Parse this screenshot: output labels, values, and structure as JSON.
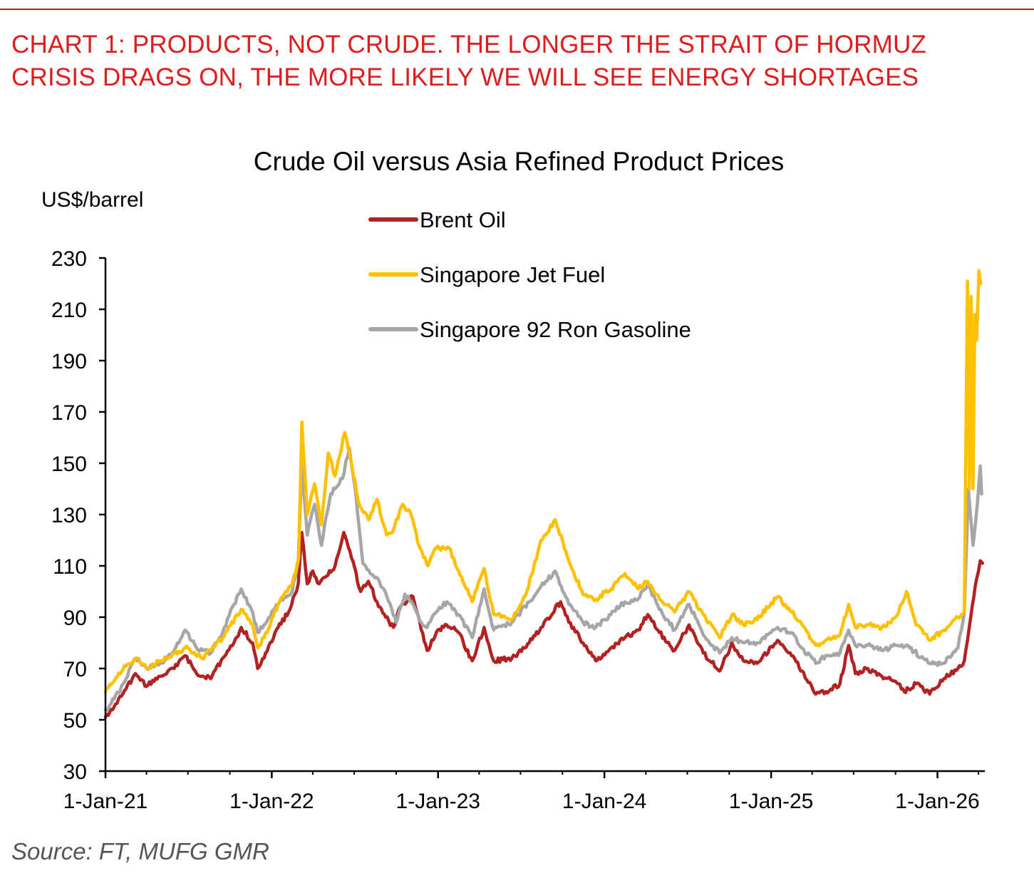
{
  "header": {
    "line1": "CHART 1: PRODUCTS, NOT CRUDE. THE LONGER THE STRAIT OF HORMUZ",
    "line2": "CRISIS DRAGS ON, THE MORE LIKELY WE WILL SEE ENERGY SHORTAGES",
    "accent_color": "#e01b1b"
  },
  "source": "Source: FT, MUFG GMR",
  "chart_data": {
    "type": "line",
    "title": "Crude Oil versus Asia Refined Product Prices",
    "ylabel": "US$/barrel",
    "xlabel": "",
    "ylim": [
      30,
      230
    ],
    "yticks": [
      30,
      50,
      70,
      90,
      110,
      130,
      150,
      170,
      190,
      210,
      230
    ],
    "xlim": [
      "2021-01-01",
      "2026-04-15"
    ],
    "xticks": [
      {
        "date": "2021-01-01",
        "label": "1-Jan-21"
      },
      {
        "date": "2022-01-01",
        "label": "1-Jan-22"
      },
      {
        "date": "2023-01-01",
        "label": "1-Jan-23"
      },
      {
        "date": "2024-01-01",
        "label": "1-Jan-24"
      },
      {
        "date": "2025-01-01",
        "label": "1-Jan-25"
      },
      {
        "date": "2026-01-01",
        "label": "1-Jan-26"
      }
    ],
    "grid": false,
    "legend_position": "top-center",
    "series": [
      {
        "name": "Brent Oil",
        "color": "#b22222",
        "points": [
          [
            "2021-01-01",
            51
          ],
          [
            "2021-01-20",
            55
          ],
          [
            "2021-02-15",
            62
          ],
          [
            "2021-03-08",
            68
          ],
          [
            "2021-04-01",
            63
          ],
          [
            "2021-05-01",
            67
          ],
          [
            "2021-06-01",
            70
          ],
          [
            "2021-06-25",
            75
          ],
          [
            "2021-07-20",
            68
          ],
          [
            "2021-08-20",
            66
          ],
          [
            "2021-09-15",
            74
          ],
          [
            "2021-10-10",
            80
          ],
          [
            "2021-10-26",
            86
          ],
          [
            "2021-11-20",
            80
          ],
          [
            "2021-12-01",
            70
          ],
          [
            "2021-12-15",
            74
          ],
          [
            "2022-01-15",
            86
          ],
          [
            "2022-02-10",
            93
          ],
          [
            "2022-02-28",
            103
          ],
          [
            "2022-03-08",
            123
          ],
          [
            "2022-03-20",
            103
          ],
          [
            "2022-04-01",
            108
          ],
          [
            "2022-04-15",
            103
          ],
          [
            "2022-05-01",
            106
          ],
          [
            "2022-05-20",
            110
          ],
          [
            "2022-06-08",
            123
          ],
          [
            "2022-06-25",
            113
          ],
          [
            "2022-07-15",
            100
          ],
          [
            "2022-08-01",
            104
          ],
          [
            "2022-08-20",
            96
          ],
          [
            "2022-09-08",
            90
          ],
          [
            "2022-09-25",
            86
          ],
          [
            "2022-10-10",
            94
          ],
          [
            "2022-11-07",
            98
          ],
          [
            "2022-11-25",
            85
          ],
          [
            "2022-12-08",
            77
          ],
          [
            "2022-12-28",
            84
          ],
          [
            "2023-01-20",
            87
          ],
          [
            "2023-02-15",
            84
          ],
          [
            "2023-03-17",
            73
          ],
          [
            "2023-04-12",
            86
          ],
          [
            "2023-05-03",
            73
          ],
          [
            "2023-06-12",
            74
          ],
          [
            "2023-07-20",
            80
          ],
          [
            "2023-08-15",
            86
          ],
          [
            "2023-09-27",
            96
          ],
          [
            "2023-10-15",
            88
          ],
          [
            "2023-11-15",
            80
          ],
          [
            "2023-12-13",
            73
          ],
          [
            "2024-01-15",
            78
          ],
          [
            "2024-02-15",
            82
          ],
          [
            "2024-03-15",
            85
          ],
          [
            "2024-04-05",
            91
          ],
          [
            "2024-05-01",
            84
          ],
          [
            "2024-06-03",
            77
          ],
          [
            "2024-07-05",
            87
          ],
          [
            "2024-08-05",
            76
          ],
          [
            "2024-09-10",
            69
          ],
          [
            "2024-10-07",
            80
          ],
          [
            "2024-11-01",
            73
          ],
          [
            "2024-12-01",
            72
          ],
          [
            "2025-01-15",
            81
          ],
          [
            "2025-02-15",
            75
          ],
          [
            "2025-03-10",
            69
          ],
          [
            "2025-04-09",
            60
          ],
          [
            "2025-05-01",
            61
          ],
          [
            "2025-06-01",
            64
          ],
          [
            "2025-06-20",
            79
          ],
          [
            "2025-07-05",
            68
          ],
          [
            "2025-08-01",
            70
          ],
          [
            "2025-09-01",
            67
          ],
          [
            "2025-10-01",
            65
          ],
          [
            "2025-10-20",
            61
          ],
          [
            "2025-11-15",
            64
          ],
          [
            "2025-12-15",
            60
          ],
          [
            "2026-01-15",
            66
          ],
          [
            "2026-02-15",
            70
          ],
          [
            "2026-03-01",
            73
          ],
          [
            "2026-03-15",
            90
          ],
          [
            "2026-03-28",
            105
          ],
          [
            "2026-04-05",
            112
          ],
          [
            "2026-04-10",
            111
          ]
        ]
      },
      {
        "name": "Singapore Jet Fuel",
        "color": "#ffc000",
        "points": [
          [
            "2021-01-01",
            61
          ],
          [
            "2021-01-20",
            65
          ],
          [
            "2021-02-15",
            71
          ],
          [
            "2021-03-08",
            74
          ],
          [
            "2021-04-01",
            70
          ],
          [
            "2021-05-01",
            73
          ],
          [
            "2021-06-01",
            76
          ],
          [
            "2021-07-01",
            78
          ],
          [
            "2021-08-01",
            74
          ],
          [
            "2021-09-15",
            82
          ],
          [
            "2021-10-26",
            93
          ],
          [
            "2021-11-20",
            87
          ],
          [
            "2021-12-01",
            78
          ],
          [
            "2021-12-15",
            82
          ],
          [
            "2022-01-15",
            95
          ],
          [
            "2022-02-15",
            103
          ],
          [
            "2022-03-01",
            113
          ],
          [
            "2022-03-08",
            166
          ],
          [
            "2022-03-20",
            130
          ],
          [
            "2022-04-05",
            142
          ],
          [
            "2022-04-20",
            126
          ],
          [
            "2022-05-05",
            154
          ],
          [
            "2022-05-20",
            145
          ],
          [
            "2022-06-10",
            162
          ],
          [
            "2022-06-25",
            150
          ],
          [
            "2022-07-10",
            135
          ],
          [
            "2022-08-01",
            128
          ],
          [
            "2022-08-20",
            136
          ],
          [
            "2022-09-10",
            122
          ],
          [
            "2022-09-25",
            124
          ],
          [
            "2022-10-15",
            134
          ],
          [
            "2022-11-01",
            131
          ],
          [
            "2022-11-20",
            118
          ],
          [
            "2022-12-10",
            110
          ],
          [
            "2022-12-28",
            117
          ],
          [
            "2023-01-25",
            117
          ],
          [
            "2023-02-15",
            108
          ],
          [
            "2023-03-17",
            96
          ],
          [
            "2023-04-12",
            109
          ],
          [
            "2023-05-03",
            91
          ],
          [
            "2023-06-12",
            89
          ],
          [
            "2023-07-15",
            100
          ],
          [
            "2023-08-15",
            120
          ],
          [
            "2023-09-15",
            128
          ],
          [
            "2023-10-15",
            112
          ],
          [
            "2023-11-15",
            99
          ],
          [
            "2023-12-13",
            97
          ],
          [
            "2024-01-15",
            101
          ],
          [
            "2024-02-15",
            107
          ],
          [
            "2024-03-15",
            101
          ],
          [
            "2024-04-05",
            104
          ],
          [
            "2024-05-01",
            97
          ],
          [
            "2024-06-03",
            92
          ],
          [
            "2024-07-05",
            100
          ],
          [
            "2024-08-05",
            91
          ],
          [
            "2024-09-10",
            82
          ],
          [
            "2024-10-07",
            91
          ],
          [
            "2024-11-01",
            87
          ],
          [
            "2024-12-01",
            89
          ],
          [
            "2025-01-15",
            98
          ],
          [
            "2025-02-15",
            92
          ],
          [
            "2025-03-10",
            87
          ],
          [
            "2025-04-09",
            79
          ],
          [
            "2025-05-01",
            81
          ],
          [
            "2025-06-01",
            83
          ],
          [
            "2025-06-20",
            95
          ],
          [
            "2025-07-05",
            86
          ],
          [
            "2025-08-01",
            87
          ],
          [
            "2025-09-01",
            86
          ],
          [
            "2025-10-01",
            90
          ],
          [
            "2025-10-25",
            100
          ],
          [
            "2025-11-15",
            87
          ],
          [
            "2025-12-15",
            81
          ],
          [
            "2026-01-15",
            85
          ],
          [
            "2026-02-15",
            90
          ],
          [
            "2026-03-01",
            92
          ],
          [
            "2026-03-05",
            170
          ],
          [
            "2026-03-08",
            221
          ],
          [
            "2026-03-12",
            140
          ],
          [
            "2026-03-16",
            215
          ],
          [
            "2026-03-20",
            140
          ],
          [
            "2026-03-24",
            208
          ],
          [
            "2026-03-28",
            198
          ],
          [
            "2026-04-02",
            225
          ],
          [
            "2026-04-06",
            220
          ]
        ]
      },
      {
        "name": "Singapore 92 Ron Gasoline",
        "color": "#a6a6a6",
        "points": [
          [
            "2021-01-01",
            54
          ],
          [
            "2021-01-20",
            58
          ],
          [
            "2021-02-15",
            66
          ],
          [
            "2021-03-08",
            74
          ],
          [
            "2021-04-01",
            70
          ],
          [
            "2021-05-01",
            72
          ],
          [
            "2021-06-01",
            77
          ],
          [
            "2021-06-25",
            85
          ],
          [
            "2021-07-20",
            78
          ],
          [
            "2021-08-20",
            76
          ],
          [
            "2021-09-15",
            84
          ],
          [
            "2021-10-10",
            95
          ],
          [
            "2021-10-26",
            101
          ],
          [
            "2021-11-20",
            92
          ],
          [
            "2021-12-01",
            84
          ],
          [
            "2021-12-15",
            87
          ],
          [
            "2022-01-15",
            95
          ],
          [
            "2022-02-15",
            100
          ],
          [
            "2022-02-28",
            112
          ],
          [
            "2022-03-08",
            149
          ],
          [
            "2022-03-20",
            122
          ],
          [
            "2022-04-05",
            134
          ],
          [
            "2022-04-20",
            118
          ],
          [
            "2022-05-10",
            138
          ],
          [
            "2022-06-05",
            144
          ],
          [
            "2022-06-20",
            156
          ],
          [
            "2022-07-05",
            137
          ],
          [
            "2022-07-20",
            111
          ],
          [
            "2022-08-05",
            107
          ],
          [
            "2022-08-25",
            104
          ],
          [
            "2022-09-15",
            96
          ],
          [
            "2022-10-01",
            88
          ],
          [
            "2022-10-20",
            99
          ],
          [
            "2022-11-07",
            95
          ],
          [
            "2022-11-25",
            88
          ],
          [
            "2022-12-08",
            86
          ],
          [
            "2022-12-28",
            92
          ],
          [
            "2023-01-20",
            96
          ],
          [
            "2023-02-15",
            91
          ],
          [
            "2023-03-17",
            82
          ],
          [
            "2023-04-12",
            101
          ],
          [
            "2023-05-03",
            85
          ],
          [
            "2023-06-12",
            88
          ],
          [
            "2023-07-20",
            96
          ],
          [
            "2023-08-15",
            102
          ],
          [
            "2023-09-15",
            108
          ],
          [
            "2023-10-15",
            95
          ],
          [
            "2023-11-15",
            88
          ],
          [
            "2023-12-13",
            86
          ],
          [
            "2024-01-15",
            91
          ],
          [
            "2024-02-15",
            96
          ],
          [
            "2024-03-15",
            97
          ],
          [
            "2024-04-05",
            103
          ],
          [
            "2024-05-01",
            93
          ],
          [
            "2024-06-03",
            85
          ],
          [
            "2024-07-05",
            95
          ],
          [
            "2024-08-05",
            83
          ],
          [
            "2024-09-10",
            76
          ],
          [
            "2024-10-07",
            82
          ],
          [
            "2024-11-01",
            80
          ],
          [
            "2024-12-01",
            80
          ],
          [
            "2025-01-15",
            86
          ],
          [
            "2025-02-15",
            84
          ],
          [
            "2025-03-10",
            78
          ],
          [
            "2025-04-09",
            72
          ],
          [
            "2025-05-01",
            75
          ],
          [
            "2025-06-01",
            76
          ],
          [
            "2025-06-20",
            85
          ],
          [
            "2025-07-05",
            79
          ],
          [
            "2025-08-01",
            79
          ],
          [
            "2025-09-01",
            77
          ],
          [
            "2025-10-01",
            79
          ],
          [
            "2025-11-01",
            78
          ],
          [
            "2025-12-15",
            72
          ],
          [
            "2026-01-15",
            72
          ],
          [
            "2026-02-15",
            78
          ],
          [
            "2026-03-01",
            92
          ],
          [
            "2026-03-10",
            140
          ],
          [
            "2026-03-20",
            118
          ],
          [
            "2026-03-30",
            135
          ],
          [
            "2026-04-05",
            149
          ],
          [
            "2026-04-08",
            138
          ]
        ]
      }
    ]
  }
}
